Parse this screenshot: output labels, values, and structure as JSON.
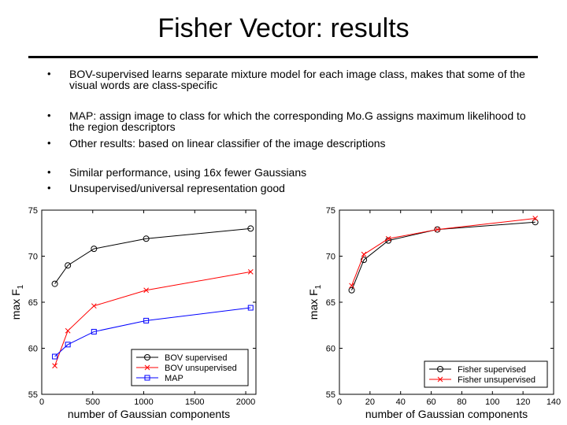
{
  "slide": {
    "title": "Fisher Vector: results",
    "bullets": [
      {
        "marker": "•",
        "text": "BOV-supervised learns separate mixture model for each image class, makes that some of the visual words are class-specific"
      },
      {
        "marker": "•",
        "text": "MAP: assign image to class for which the corresponding Mo.G assigns maximum likelihood to the region descriptors"
      },
      {
        "marker": "•",
        "text": "Other results: based on linear classifier of the image descriptions"
      },
      {
        "marker": "•",
        "text": "Similar performance, using 16x fewer Gaussians"
      },
      {
        "marker": "•",
        "text": "Unsupervised/universal representation good"
      }
    ]
  },
  "chart_data": [
    {
      "type": "line",
      "title": "",
      "xlabel": "number of Gaussian components",
      "ylabel": "max F",
      "ylabel_subscript": "1",
      "xlim": [
        0,
        2100
      ],
      "ylim": [
        55,
        75
      ],
      "xticks": [
        0,
        500,
        1000,
        1500,
        2000
      ],
      "yticks": [
        55,
        60,
        65,
        70,
        75
      ],
      "grid": false,
      "legend_position": "bottom-right",
      "series": [
        {
          "name": "BOV supervised",
          "color": "#000000",
          "marker": "circle",
          "x": [
            128,
            256,
            512,
            1024,
            2048
          ],
          "y": [
            67.0,
            69.0,
            70.8,
            71.9,
            73.0
          ]
        },
        {
          "name": "BOV unsupervised",
          "color": "#ff0000",
          "marker": "x",
          "x": [
            128,
            256,
            512,
            1024,
            2048
          ],
          "y": [
            58.1,
            61.9,
            64.6,
            66.3,
            68.3
          ]
        },
        {
          "name": "MAP",
          "color": "#0000ff",
          "marker": "square",
          "x": [
            128,
            256,
            512,
            1024,
            2048
          ],
          "y": [
            59.1,
            60.4,
            61.8,
            63.0,
            64.4
          ]
        }
      ]
    },
    {
      "type": "line",
      "title": "",
      "xlabel": "number of Gaussian components",
      "ylabel": "max F",
      "ylabel_subscript": "1",
      "xlim": [
        0,
        140
      ],
      "ylim": [
        55,
        75
      ],
      "xticks": [
        0,
        20,
        40,
        60,
        80,
        100,
        120,
        140
      ],
      "yticks": [
        55,
        60,
        65,
        70,
        75
      ],
      "grid": false,
      "legend_position": "bottom-right",
      "series": [
        {
          "name": "Fisher supervised",
          "color": "#000000",
          "marker": "circle",
          "x": [
            8,
            16,
            32,
            64,
            128
          ],
          "y": [
            66.3,
            69.6,
            71.7,
            72.9,
            73.7
          ]
        },
        {
          "name": "Fisher unsupervised",
          "color": "#ff0000",
          "marker": "x",
          "x": [
            8,
            16,
            32,
            64,
            128
          ],
          "y": [
            66.8,
            70.2,
            71.9,
            72.9,
            74.1
          ]
        }
      ]
    }
  ]
}
